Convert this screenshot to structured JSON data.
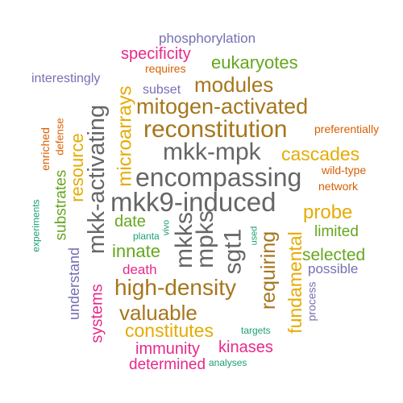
{
  "colors": {
    "teal": "#1b9e77",
    "orange": "#d95f02",
    "purple": "#7570b3",
    "magenta": "#e7298a",
    "green": "#66a61e",
    "gold": "#e6ab02",
    "brown": "#a6761d",
    "gray": "#666666"
  },
  "words": [
    {
      "key": "phosphorylation",
      "text": "phosphorylation",
      "color": "#7570b3",
      "rotated": false
    },
    {
      "key": "specificity",
      "text": "specificity",
      "color": "#e7298a",
      "rotated": false
    },
    {
      "key": "requires",
      "text": "requires",
      "color": "#d95f02",
      "rotated": false
    },
    {
      "key": "eukaryotes",
      "text": "eukaryotes",
      "color": "#66a61e",
      "rotated": false
    },
    {
      "key": "interestingly",
      "text": "interestingly",
      "color": "#7570b3",
      "rotated": false
    },
    {
      "key": "subset",
      "text": "subset",
      "color": "#7570b3",
      "rotated": false
    },
    {
      "key": "modules",
      "text": "modules",
      "color": "#a6761d",
      "rotated": false
    },
    {
      "key": "mitogen-activated",
      "text": "mitogen-activated",
      "color": "#a6761d",
      "rotated": false
    },
    {
      "key": "reconstitution",
      "text": "reconstitution",
      "color": "#a6761d",
      "rotated": false
    },
    {
      "key": "preferentially",
      "text": "preferentially",
      "color": "#d95f02",
      "rotated": false
    },
    {
      "key": "mkk-mpk",
      "text": "mkk-mpk",
      "color": "#666666",
      "rotated": false
    },
    {
      "key": "cascades",
      "text": "cascades",
      "color": "#e6ab02",
      "rotated": false
    },
    {
      "key": "wild-type",
      "text": "wild-type",
      "color": "#d95f02",
      "rotated": false
    },
    {
      "key": "encompassing",
      "text": "encompassing",
      "color": "#666666",
      "rotated": false
    },
    {
      "key": "network",
      "text": "network",
      "color": "#d95f02",
      "rotated": false
    },
    {
      "key": "mkk9-induced",
      "text": "mkk9-induced",
      "color": "#666666",
      "rotated": false
    },
    {
      "key": "probe",
      "text": "probe",
      "color": "#e6ab02",
      "rotated": false
    },
    {
      "key": "date",
      "text": "date",
      "color": "#66a61e",
      "rotated": false
    },
    {
      "key": "limited",
      "text": "limited",
      "color": "#66a61e",
      "rotated": false
    },
    {
      "key": "planta",
      "text": "planta",
      "color": "#1b9e77",
      "rotated": false
    },
    {
      "key": "innate",
      "text": "innate",
      "color": "#66a61e",
      "rotated": false
    },
    {
      "key": "selected",
      "text": "selected",
      "color": "#66a61e",
      "rotated": false
    },
    {
      "key": "death",
      "text": "death",
      "color": "#e7298a",
      "rotated": false
    },
    {
      "key": "possible",
      "text": "possible",
      "color": "#7570b3",
      "rotated": false
    },
    {
      "key": "high-density",
      "text": "high-density",
      "color": "#a6761d",
      "rotated": false
    },
    {
      "key": "valuable",
      "text": "valuable",
      "color": "#a6761d",
      "rotated": false
    },
    {
      "key": "constitutes",
      "text": "constitutes",
      "color": "#e6ab02",
      "rotated": false
    },
    {
      "key": "targets",
      "text": "targets",
      "color": "#1b9e77",
      "rotated": false
    },
    {
      "key": "immunity",
      "text": "immunity",
      "color": "#e7298a",
      "rotated": false
    },
    {
      "key": "kinases",
      "text": "kinases",
      "color": "#e7298a",
      "rotated": false
    },
    {
      "key": "determined",
      "text": "determined",
      "color": "#e7298a",
      "rotated": false
    },
    {
      "key": "analyses",
      "text": "analyses",
      "color": "#1b9e77",
      "rotated": false
    },
    {
      "key": "mkk-activating",
      "text": "mkk-activating",
      "color": "#666666",
      "rotated": true
    },
    {
      "key": "microarrays",
      "text": "microarrays",
      "color": "#e6ab02",
      "rotated": true
    },
    {
      "key": "resource",
      "text": "resource",
      "color": "#e6ab02",
      "rotated": true
    },
    {
      "key": "substrates",
      "text": "substrates",
      "color": "#66a61e",
      "rotated": true
    },
    {
      "key": "enriched",
      "text": "enriched",
      "color": "#d95f02",
      "rotated": true
    },
    {
      "key": "defense",
      "text": "defense",
      "color": "#d95f02",
      "rotated": true
    },
    {
      "key": "experiments",
      "text": "experiments",
      "color": "#1b9e77",
      "rotated": true
    },
    {
      "key": "understand",
      "text": "understand",
      "color": "#7570b3",
      "rotated": true
    },
    {
      "key": "systems",
      "text": "systems",
      "color": "#e7298a",
      "rotated": true
    },
    {
      "key": "mkks",
      "text": "mkks",
      "color": "#666666",
      "rotated": true
    },
    {
      "key": "mpks",
      "text": "mpks",
      "color": "#666666",
      "rotated": true
    },
    {
      "key": "sgt1",
      "text": "sgt1",
      "color": "#666666",
      "rotated": true
    },
    {
      "key": "vivo",
      "text": "vivo",
      "color": "#1b9e77",
      "rotated": true
    },
    {
      "key": "used",
      "text": "used",
      "color": "#1b9e77",
      "rotated": true
    },
    {
      "key": "requiring",
      "text": "requiring",
      "color": "#a6761d",
      "rotated": true
    },
    {
      "key": "fundamental",
      "text": "fundamental",
      "color": "#e6ab02",
      "rotated": true
    },
    {
      "key": "process",
      "text": "process",
      "color": "#7570b3",
      "rotated": true
    }
  ]
}
